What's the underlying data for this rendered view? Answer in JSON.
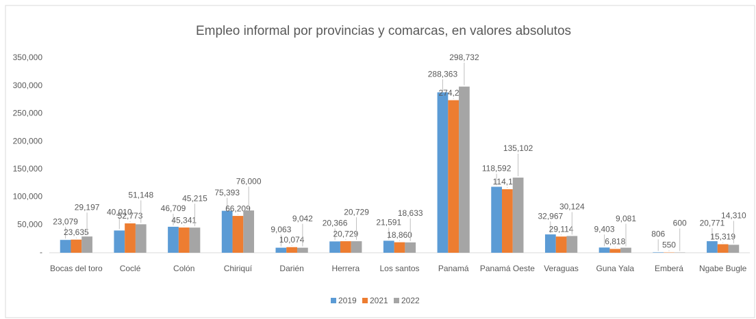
{
  "chart_data": {
    "type": "bar",
    "title": "Empleo informal por provincias y comarcas, en valores absolutos",
    "categories": [
      "Bocas del toro",
      "Coclé",
      "Colón",
      "Chiriquí",
      "Darién",
      "Herrera",
      "Los santos",
      "Panamá",
      "Panamá Oeste",
      "Veraguas",
      "Guna Yala",
      "Emberá",
      "Ngabe Bugle"
    ],
    "series": [
      {
        "name": "2019",
        "color": "#5b9bd5",
        "values": [
          23079,
          40010,
          46709,
          75393,
          9063,
          20366,
          21591,
          288363,
          118592,
          32967,
          9403,
          806,
          20771
        ],
        "value_labels": [
          "23,079",
          "40,010",
          "46,709",
          "75,393",
          "9,063",
          "20,366",
          "21,591",
          "288,363",
          "118,592",
          "32,967",
          "9,403",
          "806",
          "20,771"
        ]
      },
      {
        "name": "2021",
        "color": "#ed7d31",
        "values": [
          23635,
          52773,
          45341,
          66209,
          10074,
          20729,
          18860,
          274275,
          114186,
          29114,
          6818,
          550,
          15319
        ],
        "value_labels": [
          "23,635",
          "52,773",
          "45,341",
          "66,209",
          "10,074",
          "20,729",
          "18,860",
          "274,275",
          "114,186",
          "29,114",
          "6,818",
          "550",
          "15,319"
        ]
      },
      {
        "name": "2022",
        "color": "#a5a5a5",
        "values": [
          29197,
          51148,
          45215,
          76000,
          9042,
          20729,
          18633,
          298732,
          135102,
          30124,
          9081,
          600,
          14310
        ],
        "value_labels": [
          "29,197",
          "51,148",
          "45,215",
          "76,000",
          "9,042",
          "20,729",
          "18,633",
          "298,732",
          "135,102",
          "30,124",
          "9,081",
          "600",
          "14,310"
        ]
      }
    ],
    "ylim": [
      0,
      350000
    ],
    "yticks": [
      {
        "value": 0,
        "label": "-"
      },
      {
        "value": 50000,
        "label": "50,000"
      },
      {
        "value": 100000,
        "label": "100,000"
      },
      {
        "value": 150000,
        "label": "150,000"
      },
      {
        "value": 200000,
        "label": "200,000"
      },
      {
        "value": 250000,
        "label": "250,000"
      },
      {
        "value": 300000,
        "label": "300,000"
      },
      {
        "value": 350000,
        "label": "350,000"
      }
    ],
    "grid": false,
    "legend": "bottom"
  }
}
